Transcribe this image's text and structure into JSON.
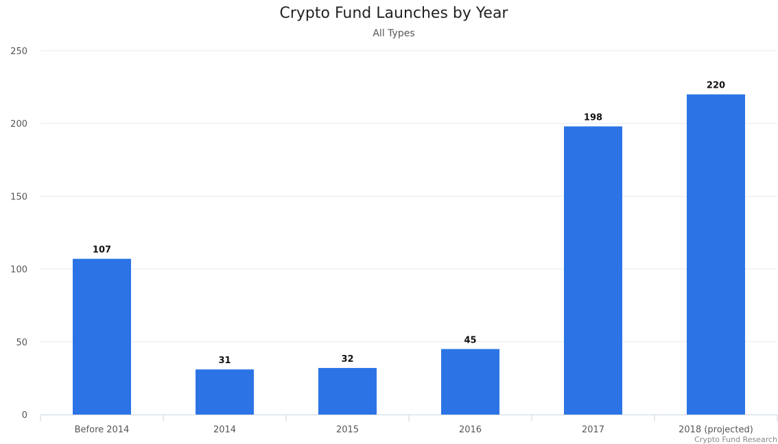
{
  "chart_data": {
    "type": "bar",
    "title": "Crypto Fund Launches by Year",
    "subtitle": "All Types",
    "categories": [
      "Before 2014",
      "2014",
      "2015",
      "2016",
      "2017",
      "2018 (projected)"
    ],
    "values": [
      107,
      31,
      32,
      45,
      198,
      220
    ],
    "data_labels": [
      "107",
      "31",
      "32",
      "45",
      "198",
      "220"
    ],
    "ylim": [
      0,
      250
    ],
    "yticks": [
      0,
      50,
      100,
      150,
      200,
      250
    ],
    "ytick_labels": [
      "0",
      "50",
      "100",
      "150",
      "200",
      "250"
    ],
    "xlabel": "",
    "ylabel": "",
    "grid": true,
    "legend": "none",
    "bar_color": "#2c74e5",
    "credit": "Crypto Fund Research"
  }
}
